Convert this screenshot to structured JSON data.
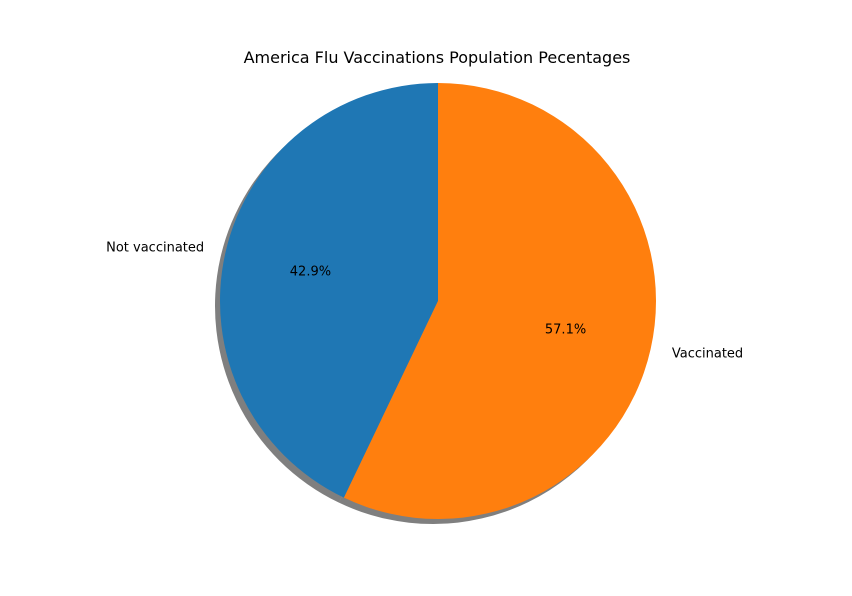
{
  "chart_data": {
    "type": "pie",
    "title": "America Flu Vaccinations Population Pecentages",
    "slices": [
      {
        "label": "Not vaccinated",
        "value": 42.9,
        "pct_label": "42.9%",
        "color": "#1f77b4"
      },
      {
        "label": "Vaccinated",
        "value": 57.1,
        "pct_label": "57.1%",
        "color": "#ff7f0e"
      }
    ],
    "start_angle": 90,
    "direction": "counterclockwise",
    "shadow": true,
    "shadow_color": "#7f7f7f"
  }
}
